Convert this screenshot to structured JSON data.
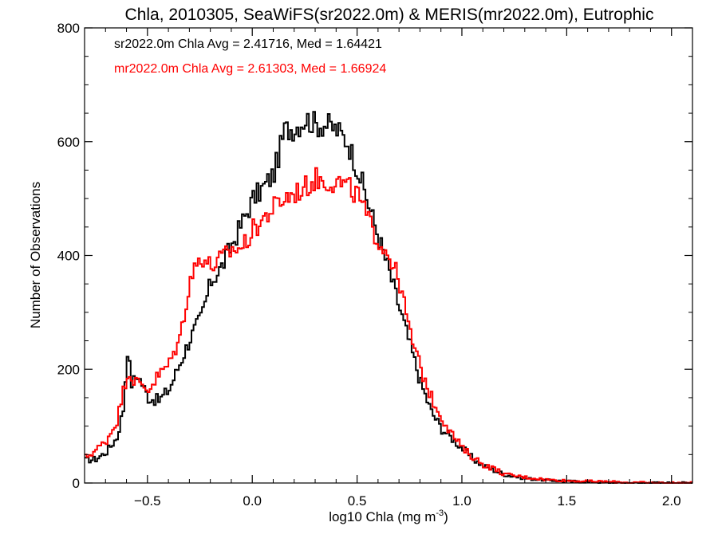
{
  "chart_data": {
    "type": "line",
    "subtype": "step-histogram",
    "title": "Chla, 2010305, SeaWiFS(sr2022.0m) & MERIS(mr2022.0m), Eutrophic",
    "xlabel": "log10 Chla (mg m",
    "xlabel_sup": "-3",
    "xlabel_close": ")",
    "ylabel": "Number of Observations",
    "xlim": [
      -0.8,
      2.1
    ],
    "ylim": [
      0,
      800
    ],
    "xticks": [
      {
        "value": -0.5,
        "label": "−0.5"
      },
      {
        "value": 0.0,
        "label": "0.0"
      },
      {
        "value": 0.5,
        "label": "0.5"
      },
      {
        "value": 1.0,
        "label": "1.0"
      },
      {
        "value": 1.5,
        "label": "1.5"
      },
      {
        "value": 2.0,
        "label": "2.0"
      }
    ],
    "yticks": [
      {
        "value": 0,
        "label": "0"
      },
      {
        "value": 200,
        "label": "200"
      },
      {
        "value": 400,
        "label": "400"
      },
      {
        "value": 600,
        "label": "600"
      },
      {
        "value": 800,
        "label": "800"
      }
    ],
    "annotations": [
      {
        "text": "sr2022.0m Chla Avg = 2.41716, Med = 1.64421",
        "color": "#000000"
      },
      {
        "text": "mr2022.0m Chla Avg = 2.61303, Med = 1.66924",
        "color": "#ff0000"
      }
    ],
    "series": [
      {
        "color": "#000000",
        "points": [
          [
            -0.8,
            40
          ],
          [
            -0.75,
            42
          ],
          [
            -0.7,
            55
          ],
          [
            -0.65,
            80
          ],
          [
            -0.62,
            130
          ],
          [
            -0.6,
            235
          ],
          [
            -0.58,
            175
          ],
          [
            -0.55,
            190
          ],
          [
            -0.5,
            150
          ],
          [
            -0.45,
            145
          ],
          [
            -0.4,
            165
          ],
          [
            -0.35,
            210
          ],
          [
            -0.3,
            255
          ],
          [
            -0.25,
            290
          ],
          [
            -0.2,
            355
          ],
          [
            -0.15,
            380
          ],
          [
            -0.1,
            420
          ],
          [
            -0.05,
            460
          ],
          [
            0.0,
            500
          ],
          [
            0.05,
            520
          ],
          [
            0.1,
            545
          ],
          [
            0.15,
            620
          ],
          [
            0.2,
            625
          ],
          [
            0.25,
            640
          ],
          [
            0.3,
            630
          ],
          [
            0.35,
            630
          ],
          [
            0.4,
            620
          ],
          [
            0.45,
            600
          ],
          [
            0.5,
            550
          ],
          [
            0.55,
            490
          ],
          [
            0.6,
            430
          ],
          [
            0.65,
            370
          ],
          [
            0.7,
            305
          ],
          [
            0.75,
            240
          ],
          [
            0.8,
            175
          ],
          [
            0.85,
            125
          ],
          [
            0.9,
            95
          ],
          [
            0.95,
            78
          ],
          [
            1.0,
            60
          ],
          [
            1.05,
            42
          ],
          [
            1.1,
            30
          ],
          [
            1.15,
            22
          ],
          [
            1.2,
            15
          ],
          [
            1.3,
            8
          ],
          [
            1.4,
            5
          ],
          [
            1.5,
            3
          ],
          [
            1.6,
            2
          ],
          [
            1.7,
            1
          ],
          [
            1.8,
            0
          ],
          [
            2.1,
            0
          ]
        ]
      },
      {
        "color": "#ff0000",
        "points": [
          [
            -0.8,
            45
          ],
          [
            -0.75,
            58
          ],
          [
            -0.7,
            75
          ],
          [
            -0.65,
            110
          ],
          [
            -0.6,
            195
          ],
          [
            -0.55,
            175
          ],
          [
            -0.5,
            165
          ],
          [
            -0.45,
            190
          ],
          [
            -0.4,
            210
          ],
          [
            -0.35,
            255
          ],
          [
            -0.3,
            360
          ],
          [
            -0.25,
            400
          ],
          [
            -0.2,
            380
          ],
          [
            -0.15,
            395
          ],
          [
            -0.1,
            410
          ],
          [
            -0.05,
            415
          ],
          [
            0.0,
            445
          ],
          [
            0.05,
            465
          ],
          [
            0.1,
            485
          ],
          [
            0.15,
            500
          ],
          [
            0.2,
            510
          ],
          [
            0.25,
            520
          ],
          [
            0.3,
            535
          ],
          [
            0.35,
            530
          ],
          [
            0.4,
            530
          ],
          [
            0.45,
            520
          ],
          [
            0.5,
            505
          ],
          [
            0.55,
            460
          ],
          [
            0.6,
            425
          ],
          [
            0.65,
            400
          ],
          [
            0.7,
            350
          ],
          [
            0.75,
            260
          ],
          [
            0.8,
            200
          ],
          [
            0.85,
            150
          ],
          [
            0.9,
            115
          ],
          [
            0.95,
            85
          ],
          [
            1.0,
            60
          ],
          [
            1.05,
            45
          ],
          [
            1.1,
            32
          ],
          [
            1.15,
            25
          ],
          [
            1.2,
            15
          ],
          [
            1.3,
            10
          ],
          [
            1.4,
            6
          ],
          [
            1.5,
            4
          ],
          [
            1.6,
            3
          ],
          [
            1.7,
            2
          ],
          [
            1.8,
            1
          ],
          [
            1.9,
            0
          ],
          [
            2.1,
            0
          ]
        ]
      }
    ]
  }
}
